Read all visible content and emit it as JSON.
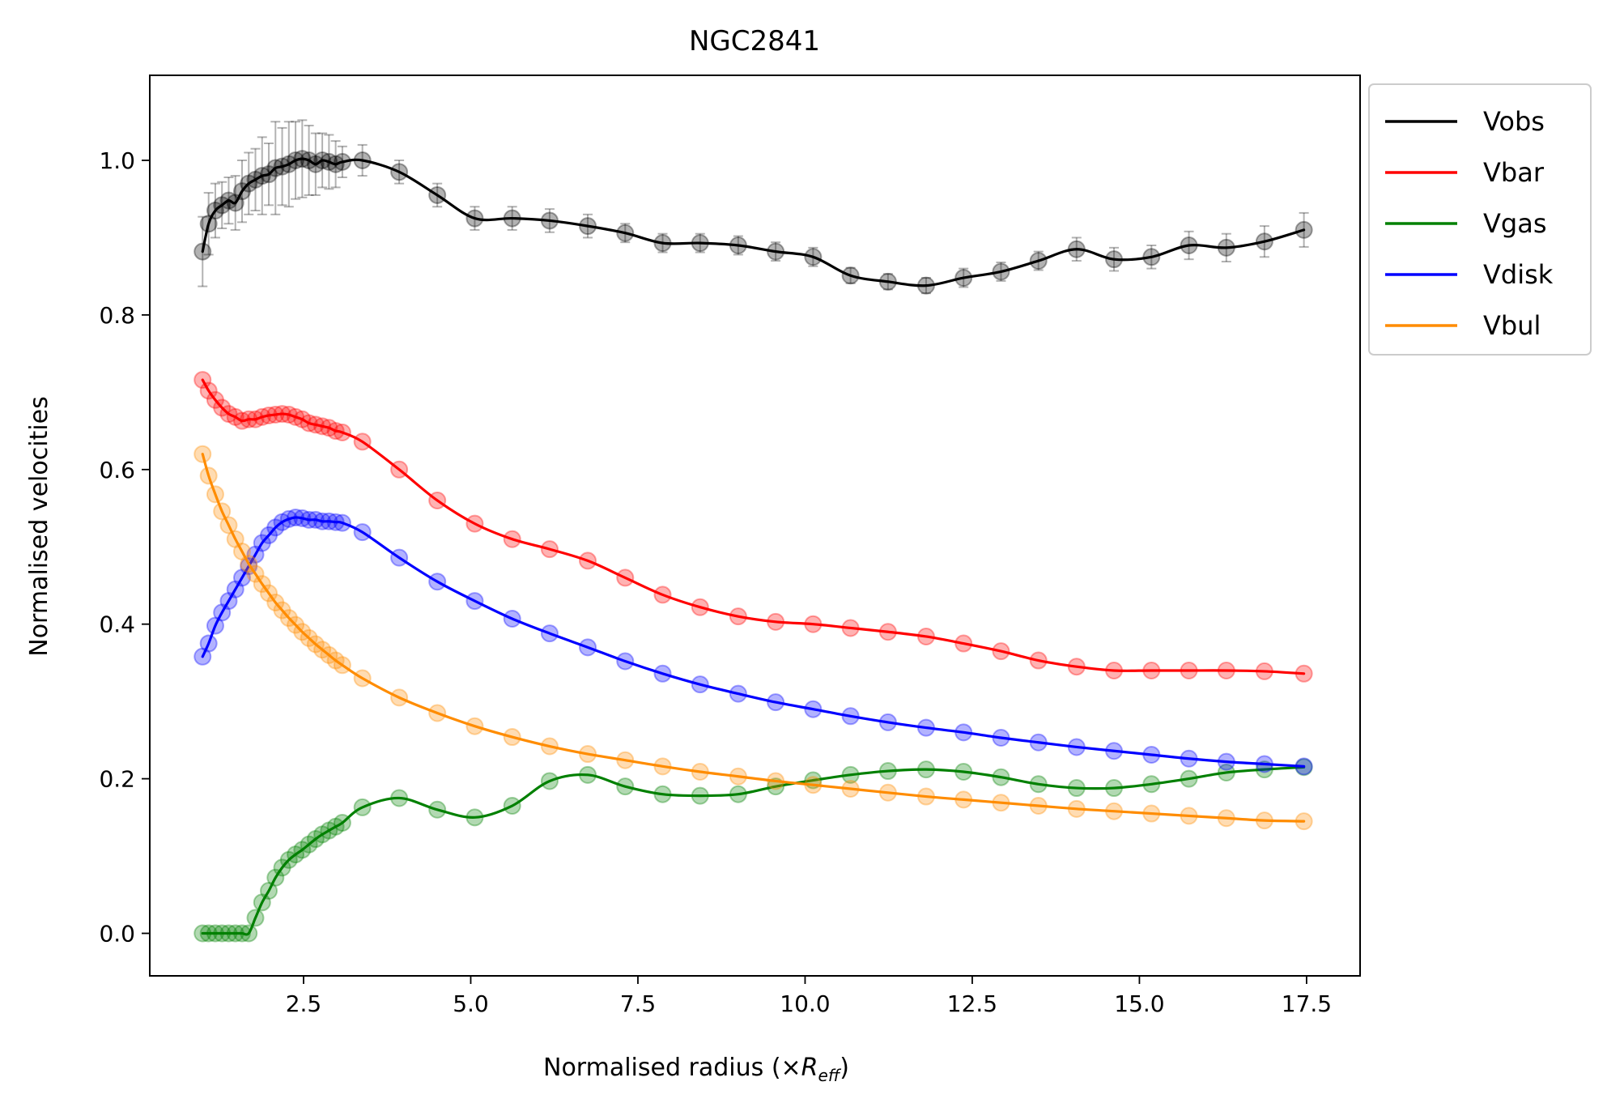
{
  "chart_data": {
    "type": "line",
    "title": "NGC2841",
    "xlabel_main": "Normalised radius (×",
    "xlabel_math": "R",
    "xlabel_sub": "eff",
    "xlabel_close": ")",
    "ylabel": "Normalised velocities",
    "xlim": [
      0.2,
      18.3
    ],
    "ylim": [
      -0.055,
      1.11
    ],
    "xticks": [
      2.5,
      5.0,
      7.5,
      10.0,
      12.5,
      15.0,
      17.5
    ],
    "xtick_labels": [
      "2.5",
      "5.0",
      "7.5",
      "10.0",
      "12.5",
      "15.0",
      "17.5"
    ],
    "yticks": [
      0.0,
      0.2,
      0.4,
      0.6,
      0.8,
      1.0
    ],
    "ytick_labels": [
      "0.0",
      "0.2",
      "0.4",
      "0.6",
      "0.8",
      "1.0"
    ],
    "legend_position": "outside-top-right",
    "x": [
      0.99,
      1.08,
      1.18,
      1.28,
      1.38,
      1.48,
      1.58,
      1.68,
      1.78,
      1.88,
      1.98,
      2.08,
      2.18,
      2.28,
      2.38,
      2.48,
      2.58,
      2.68,
      2.78,
      2.88,
      2.98,
      3.08,
      3.38,
      3.93,
      4.5,
      5.06,
      5.62,
      6.18,
      6.75,
      7.31,
      7.87,
      8.43,
      9.0,
      9.56,
      10.12,
      10.68,
      11.24,
      11.81,
      12.37,
      12.93,
      13.49,
      14.06,
      14.62,
      15.18,
      15.74,
      16.3,
      16.87,
      17.46
    ],
    "series": [
      {
        "name": "Vobs",
        "color": "#000000",
        "errorbars": true,
        "values": [
          0.882,
          0.918,
          0.935,
          0.942,
          0.948,
          0.945,
          0.96,
          0.97,
          0.975,
          0.98,
          0.982,
          0.99,
          0.992,
          0.995,
          1.0,
          1.002,
          1.0,
          0.995,
          1.0,
          0.998,
          0.995,
          0.998,
          1.0,
          0.985,
          0.955,
          0.925,
          0.925,
          0.922,
          0.915,
          0.906,
          0.893,
          0.893,
          0.89,
          0.882,
          0.875,
          0.851,
          0.843,
          0.838,
          0.848,
          0.856,
          0.87,
          0.885,
          0.872,
          0.875,
          0.89,
          0.887,
          0.895,
          0.91
        ],
        "errors": [
          0.045,
          0.04,
          0.035,
          0.03,
          0.03,
          0.035,
          0.04,
          0.04,
          0.04,
          0.05,
          0.04,
          0.06,
          0.05,
          0.055,
          0.05,
          0.05,
          0.045,
          0.04,
          0.035,
          0.035,
          0.03,
          0.02,
          0.02,
          0.015,
          0.015,
          0.015,
          0.015,
          0.015,
          0.015,
          0.012,
          0.012,
          0.012,
          0.012,
          0.012,
          0.012,
          0.01,
          0.01,
          0.01,
          0.012,
          0.012,
          0.012,
          0.015,
          0.015,
          0.015,
          0.018,
          0.018,
          0.02,
          0.022
        ]
      },
      {
        "name": "Vbar",
        "color": "#ff0000",
        "values": [
          0.716,
          0.702,
          0.69,
          0.68,
          0.672,
          0.668,
          0.663,
          0.665,
          0.665,
          0.668,
          0.67,
          0.671,
          0.672,
          0.671,
          0.668,
          0.665,
          0.66,
          0.658,
          0.656,
          0.654,
          0.65,
          0.648,
          0.636,
          0.6,
          0.56,
          0.53,
          0.51,
          0.497,
          0.482,
          0.46,
          0.438,
          0.422,
          0.41,
          0.403,
          0.4,
          0.395,
          0.39,
          0.384,
          0.375,
          0.365,
          0.353,
          0.345,
          0.34,
          0.34,
          0.34,
          0.34,
          0.339,
          0.336
        ]
      },
      {
        "name": "Vgas",
        "color": "#008000",
        "values": [
          0.0,
          0.0,
          0.0,
          0.0,
          0.0,
          0.0,
          0.0,
          0.0,
          0.02,
          0.04,
          0.055,
          0.072,
          0.085,
          0.095,
          0.102,
          0.108,
          0.115,
          0.122,
          0.128,
          0.133,
          0.138,
          0.143,
          0.163,
          0.175,
          0.16,
          0.15,
          0.165,
          0.197,
          0.205,
          0.19,
          0.18,
          0.178,
          0.18,
          0.19,
          0.198,
          0.205,
          0.21,
          0.212,
          0.209,
          0.202,
          0.193,
          0.188,
          0.188,
          0.193,
          0.2,
          0.208,
          0.212,
          0.215
        ]
      },
      {
        "name": "Vdisk",
        "color": "#0000ff",
        "values": [
          0.358,
          0.375,
          0.398,
          0.415,
          0.43,
          0.445,
          0.46,
          0.475,
          0.49,
          0.505,
          0.515,
          0.525,
          0.532,
          0.536,
          0.538,
          0.537,
          0.535,
          0.535,
          0.533,
          0.533,
          0.532,
          0.531,
          0.519,
          0.486,
          0.455,
          0.43,
          0.407,
          0.388,
          0.37,
          0.352,
          0.336,
          0.322,
          0.31,
          0.299,
          0.29,
          0.281,
          0.273,
          0.266,
          0.26,
          0.253,
          0.247,
          0.241,
          0.236,
          0.231,
          0.226,
          0.222,
          0.219,
          0.216
        ]
      },
      {
        "name": "Vbul",
        "color": "#ff8c00",
        "values": [
          0.62,
          0.592,
          0.568,
          0.546,
          0.528,
          0.51,
          0.494,
          0.478,
          0.465,
          0.452,
          0.44,
          0.428,
          0.418,
          0.408,
          0.399,
          0.39,
          0.382,
          0.374,
          0.367,
          0.36,
          0.353,
          0.347,
          0.33,
          0.305,
          0.285,
          0.268,
          0.254,
          0.242,
          0.232,
          0.224,
          0.216,
          0.209,
          0.203,
          0.197,
          0.192,
          0.187,
          0.182,
          0.177,
          0.173,
          0.169,
          0.165,
          0.161,
          0.158,
          0.155,
          0.152,
          0.149,
          0.146,
          0.145
        ]
      }
    ]
  }
}
